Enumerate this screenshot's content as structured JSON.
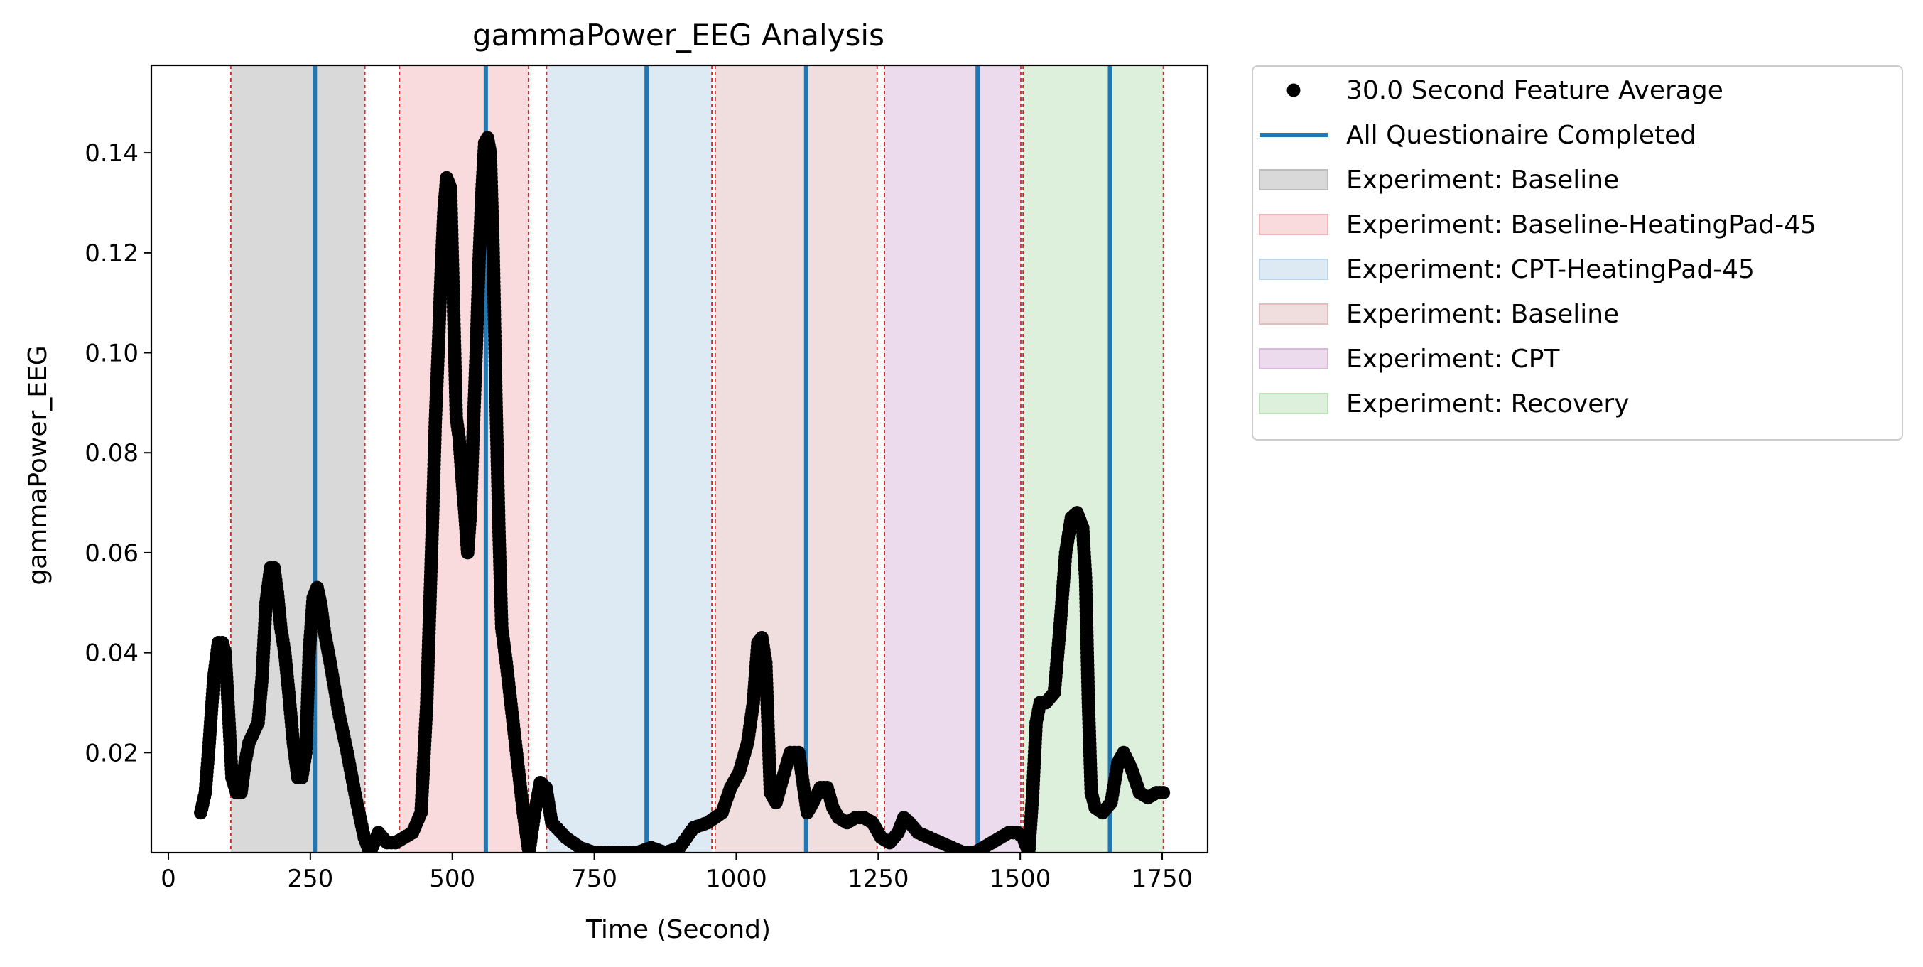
{
  "chart_data": {
    "type": "scatter",
    "title": "gammaPower_EEG Analysis",
    "xlabel": "Time (Second)",
    "ylabel": "gammaPower_EEG",
    "xlim": [
      -30,
      1830
    ],
    "ylim": [
      0.0,
      0.1575
    ],
    "xticks": [
      0,
      250,
      500,
      750,
      1000,
      1250,
      1500,
      1750
    ],
    "xtick_labels": [
      "0",
      "250",
      "500",
      "750",
      "1000",
      "1250",
      "1500",
      "1750"
    ],
    "yticks": [
      0.02,
      0.04,
      0.06,
      0.08,
      0.1,
      0.12,
      0.14
    ],
    "ytick_labels": [
      "0.02",
      "0.04",
      "0.06",
      "0.08",
      "0.10",
      "0.12",
      "0.14"
    ],
    "grid": false,
    "legend_position": "outside-right-top",
    "series": [
      {
        "name": "30.0 Second Feature Average",
        "color": "#000000",
        "marker": "circle",
        "points": [
          [
            57,
            0.008
          ],
          [
            65,
            0.012
          ],
          [
            72,
            0.022
          ],
          [
            80,
            0.035
          ],
          [
            88,
            0.042
          ],
          [
            95,
            0.042
          ],
          [
            100,
            0.04
          ],
          [
            105,
            0.03
          ],
          [
            112,
            0.015
          ],
          [
            120,
            0.012
          ],
          [
            128,
            0.012
          ],
          [
            135,
            0.018
          ],
          [
            142,
            0.022
          ],
          [
            150,
            0.024
          ],
          [
            158,
            0.026
          ],
          [
            165,
            0.035
          ],
          [
            172,
            0.05
          ],
          [
            180,
            0.057
          ],
          [
            186,
            0.057
          ],
          [
            192,
            0.052
          ],
          [
            198,
            0.045
          ],
          [
            205,
            0.04
          ],
          [
            212,
            0.032
          ],
          [
            220,
            0.022
          ],
          [
            228,
            0.015
          ],
          [
            235,
            0.015
          ],
          [
            242,
            0.02
          ],
          [
            248,
            0.04
          ],
          [
            255,
            0.051
          ],
          [
            262,
            0.053
          ],
          [
            268,
            0.05
          ],
          [
            275,
            0.044
          ],
          [
            285,
            0.038
          ],
          [
            300,
            0.028
          ],
          [
            315,
            0.02
          ],
          [
            330,
            0.011
          ],
          [
            345,
            0.003
          ],
          [
            355,
            0.0
          ],
          [
            370,
            0.004
          ],
          [
            385,
            0.002
          ],
          [
            400,
            0.002
          ],
          [
            415,
            0.003
          ],
          [
            430,
            0.004
          ],
          [
            445,
            0.008
          ],
          [
            455,
            0.03
          ],
          [
            460,
            0.048
          ],
          [
            465,
            0.066
          ],
          [
            470,
            0.086
          ],
          [
            475,
            0.1
          ],
          [
            480,
            0.115
          ],
          [
            485,
            0.128
          ],
          [
            490,
            0.135
          ],
          [
            497,
            0.133
          ],
          [
            502,
            0.11
          ],
          [
            507,
            0.087
          ],
          [
            512,
            0.083
          ],
          [
            517,
            0.075
          ],
          [
            522,
            0.068
          ],
          [
            527,
            0.06
          ],
          [
            532,
            0.068
          ],
          [
            537,
            0.085
          ],
          [
            542,
            0.1
          ],
          [
            547,
            0.118
          ],
          [
            552,
            0.132
          ],
          [
            557,
            0.142
          ],
          [
            562,
            0.143
          ],
          [
            567,
            0.14
          ],
          [
            572,
            0.12
          ],
          [
            577,
            0.09
          ],
          [
            582,
            0.065
          ],
          [
            587,
            0.045
          ],
          [
            595,
            0.038
          ],
          [
            605,
            0.028
          ],
          [
            615,
            0.018
          ],
          [
            625,
            0.008
          ],
          [
            635,
            0.0
          ],
          [
            645,
            0.008
          ],
          [
            655,
            0.014
          ],
          [
            665,
            0.013
          ],
          [
            675,
            0.006
          ],
          [
            700,
            0.003
          ],
          [
            725,
            0.001
          ],
          [
            750,
            0.0
          ],
          [
            775,
            0.0
          ],
          [
            800,
            0.0
          ],
          [
            825,
            0.0
          ],
          [
            850,
            0.001
          ],
          [
            875,
            0.0
          ],
          [
            900,
            0.001
          ],
          [
            925,
            0.005
          ],
          [
            950,
            0.006
          ],
          [
            975,
            0.008
          ],
          [
            990,
            0.013
          ],
          [
            1005,
            0.016
          ],
          [
            1020,
            0.022
          ],
          [
            1030,
            0.03
          ],
          [
            1038,
            0.042
          ],
          [
            1045,
            0.043
          ],
          [
            1052,
            0.038
          ],
          [
            1060,
            0.012
          ],
          [
            1070,
            0.01
          ],
          [
            1082,
            0.015
          ],
          [
            1095,
            0.02
          ],
          [
            1110,
            0.02
          ],
          [
            1125,
            0.008
          ],
          [
            1135,
            0.01
          ],
          [
            1148,
            0.013
          ],
          [
            1160,
            0.013
          ],
          [
            1170,
            0.009
          ],
          [
            1180,
            0.007
          ],
          [
            1195,
            0.006
          ],
          [
            1210,
            0.007
          ],
          [
            1225,
            0.007
          ],
          [
            1240,
            0.006
          ],
          [
            1255,
            0.003
          ],
          [
            1270,
            0.002
          ],
          [
            1285,
            0.004
          ],
          [
            1295,
            0.007
          ],
          [
            1305,
            0.006
          ],
          [
            1320,
            0.004
          ],
          [
            1340,
            0.003
          ],
          [
            1360,
            0.002
          ],
          [
            1380,
            0.001
          ],
          [
            1400,
            0.0
          ],
          [
            1420,
            0.0
          ],
          [
            1435,
            0.001
          ],
          [
            1450,
            0.002
          ],
          [
            1465,
            0.003
          ],
          [
            1480,
            0.004
          ],
          [
            1495,
            0.004
          ],
          [
            1505,
            0.003
          ],
          [
            1515,
            0.0
          ],
          [
            1522,
            0.012
          ],
          [
            1528,
            0.026
          ],
          [
            1535,
            0.03
          ],
          [
            1545,
            0.03
          ],
          [
            1560,
            0.032
          ],
          [
            1570,
            0.045
          ],
          [
            1580,
            0.06
          ],
          [
            1590,
            0.067
          ],
          [
            1600,
            0.068
          ],
          [
            1610,
            0.065
          ],
          [
            1615,
            0.055
          ],
          [
            1620,
            0.03
          ],
          [
            1625,
            0.012
          ],
          [
            1632,
            0.009
          ],
          [
            1645,
            0.008
          ],
          [
            1660,
            0.01
          ],
          [
            1672,
            0.018
          ],
          [
            1682,
            0.02
          ],
          [
            1695,
            0.017
          ],
          [
            1710,
            0.012
          ],
          [
            1725,
            0.011
          ],
          [
            1740,
            0.012
          ],
          [
            1752,
            0.012
          ]
        ]
      },
      {
        "name": "All Questionaire Completed",
        "color": "#1f77b4",
        "type": "vlines",
        "x": [
          258,
          559,
          842,
          1123,
          1425,
          1658
        ]
      }
    ],
    "spans": [
      {
        "label": "Experiment: Baseline",
        "x0": 110,
        "x1": 346,
        "color": "#d9d9d9",
        "edge": "#bdbdbd"
      },
      {
        "label": "Experiment: Baseline-HeatingPad-45",
        "x0": 407,
        "x1": 634,
        "color": "#f9dbdd",
        "edge": "#f2b5ba"
      },
      {
        "label": "Experiment: CPT-HeatingPad-45",
        "x0": 666,
        "x1": 957,
        "color": "#dde9f3",
        "edge": "#bcd4e8"
      },
      {
        "label": "Experiment: Baseline",
        "x0": 963,
        "x1": 1248,
        "color": "#f0dede",
        "edge": "#e0bebe"
      },
      {
        "label": "Experiment: CPT",
        "x0": 1261,
        "x1": 1501,
        "color": "#ebdbec",
        "edge": "#d7b8da"
      },
      {
        "label": "Experiment: Recovery",
        "x0": 1505,
        "x1": 1752,
        "color": "#ddf0dc",
        "edge": "#bde2bb"
      }
    ],
    "span_boundaries": [
      110,
      346,
      407,
      634,
      666,
      957,
      963,
      1248,
      1261,
      1501,
      1505,
      1752
    ],
    "legend": [
      {
        "label": "30.0 Second Feature Average",
        "kind": "marker",
        "color": "#000000"
      },
      {
        "label": "All Questionaire Completed",
        "kind": "line",
        "color": "#1f77b4"
      },
      {
        "label": "Experiment: Baseline",
        "kind": "patch",
        "color": "#d9d9d9",
        "edge": "#bdbdbd"
      },
      {
        "label": "Experiment: Baseline-HeatingPad-45",
        "kind": "patch",
        "color": "#f9dbdd",
        "edge": "#f2b5ba"
      },
      {
        "label": "Experiment: CPT-HeatingPad-45",
        "kind": "patch",
        "color": "#dde9f3",
        "edge": "#bcd4e8"
      },
      {
        "label": "Experiment: Baseline",
        "kind": "patch",
        "color": "#f0dede",
        "edge": "#e0bebe"
      },
      {
        "label": "Experiment: CPT",
        "kind": "patch",
        "color": "#ebdbec",
        "edge": "#d7b8da"
      },
      {
        "label": "Experiment: Recovery",
        "kind": "patch",
        "color": "#ddf0dc",
        "edge": "#bde2bb"
      }
    ]
  }
}
